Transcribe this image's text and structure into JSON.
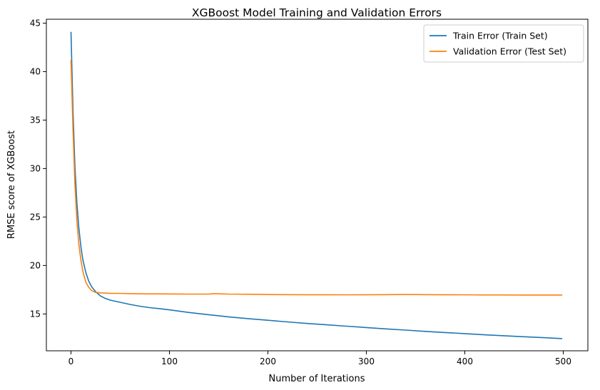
{
  "chart_data": {
    "type": "line",
    "title": "XGBoost Model Training and Validation Errors",
    "xlabel": "Number of Iterations",
    "ylabel": "RMSE score of XGBoost",
    "xlim": [
      -25,
      525
    ],
    "ylim": [
      11.2,
      45.4
    ],
    "xticks": [
      0,
      100,
      200,
      300,
      400,
      500
    ],
    "yticks": [
      15,
      20,
      25,
      30,
      35,
      40,
      45
    ],
    "grid": false,
    "legend_position": "top-right",
    "series": [
      {
        "name": "Train Error (Train Set)",
        "color": "#1f77b4",
        "x": [
          0,
          2,
          4,
          6,
          8,
          10,
          12,
          15,
          18,
          21,
          25,
          30,
          35,
          40,
          50,
          60,
          70,
          80,
          90,
          100,
          120,
          140,
          160,
          180,
          200,
          220,
          240,
          260,
          280,
          300,
          320,
          340,
          360,
          380,
          400,
          420,
          440,
          460,
          480,
          499
        ],
        "y": [
          44.1,
          36.0,
          30.2,
          26.4,
          23.9,
          22.0,
          20.6,
          19.3,
          18.4,
          17.8,
          17.3,
          16.85,
          16.6,
          16.42,
          16.2,
          15.98,
          15.8,
          15.65,
          15.55,
          15.42,
          15.15,
          14.92,
          14.7,
          14.52,
          14.35,
          14.18,
          14.02,
          13.88,
          13.74,
          13.6,
          13.46,
          13.33,
          13.2,
          13.08,
          12.97,
          12.85,
          12.75,
          12.65,
          12.55,
          12.46
        ]
      },
      {
        "name": "Validation Error (Test Set)",
        "color": "#ff7f0e",
        "x": [
          0,
          2,
          4,
          6,
          8,
          10,
          12,
          15,
          18,
          21,
          25,
          30,
          35,
          40,
          50,
          60,
          70,
          80,
          90,
          100,
          120,
          140,
          145,
          160,
          180,
          200,
          220,
          240,
          260,
          280,
          300,
          320,
          340,
          360,
          380,
          400,
          420,
          440,
          460,
          480,
          499
        ],
        "y": [
          41.2,
          34.0,
          28.4,
          24.6,
          22.2,
          20.6,
          19.4,
          18.3,
          17.75,
          17.4,
          17.22,
          17.17,
          17.15,
          17.13,
          17.12,
          17.1,
          17.08,
          17.07,
          17.07,
          17.06,
          17.05,
          17.05,
          17.1,
          17.05,
          17.03,
          17.0,
          16.99,
          16.98,
          16.98,
          16.97,
          16.98,
          16.99,
          17.0,
          16.99,
          16.98,
          16.97,
          16.96,
          16.96,
          16.95,
          16.95,
          16.95
        ]
      }
    ]
  }
}
